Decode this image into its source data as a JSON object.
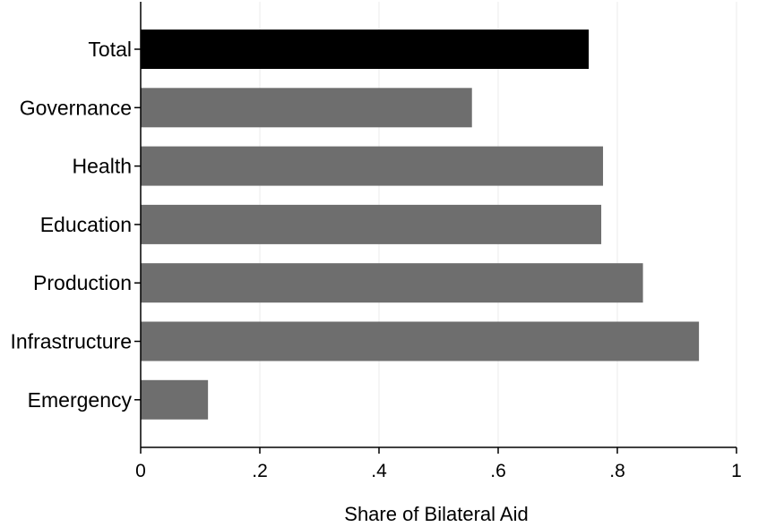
{
  "chart_data": {
    "type": "bar",
    "orientation": "horizontal",
    "categories": [
      "Total",
      "Governance",
      "Health",
      "Education",
      "Production",
      "Infrastructure",
      "Emergency"
    ],
    "values": [
      0.752,
      0.556,
      0.776,
      0.773,
      0.843,
      0.937,
      0.113
    ],
    "bar_colors": [
      "#000000",
      "#6e6e6e",
      "#6e6e6e",
      "#6e6e6e",
      "#6e6e6e",
      "#6e6e6e",
      "#6e6e6e"
    ],
    "xlabel": "Share of Bilateral  Aid",
    "ylabel": "",
    "title": "",
    "xlim": [
      0,
      1
    ],
    "x_ticks": [
      0,
      0.2,
      0.4,
      0.6,
      0.8,
      1
    ],
    "x_tick_labels": [
      "0",
      ".2",
      ".4",
      ".6",
      ".8",
      "1"
    ],
    "grid": "vertical",
    "grid_color": "#eeeeee",
    "legend": "none"
  }
}
